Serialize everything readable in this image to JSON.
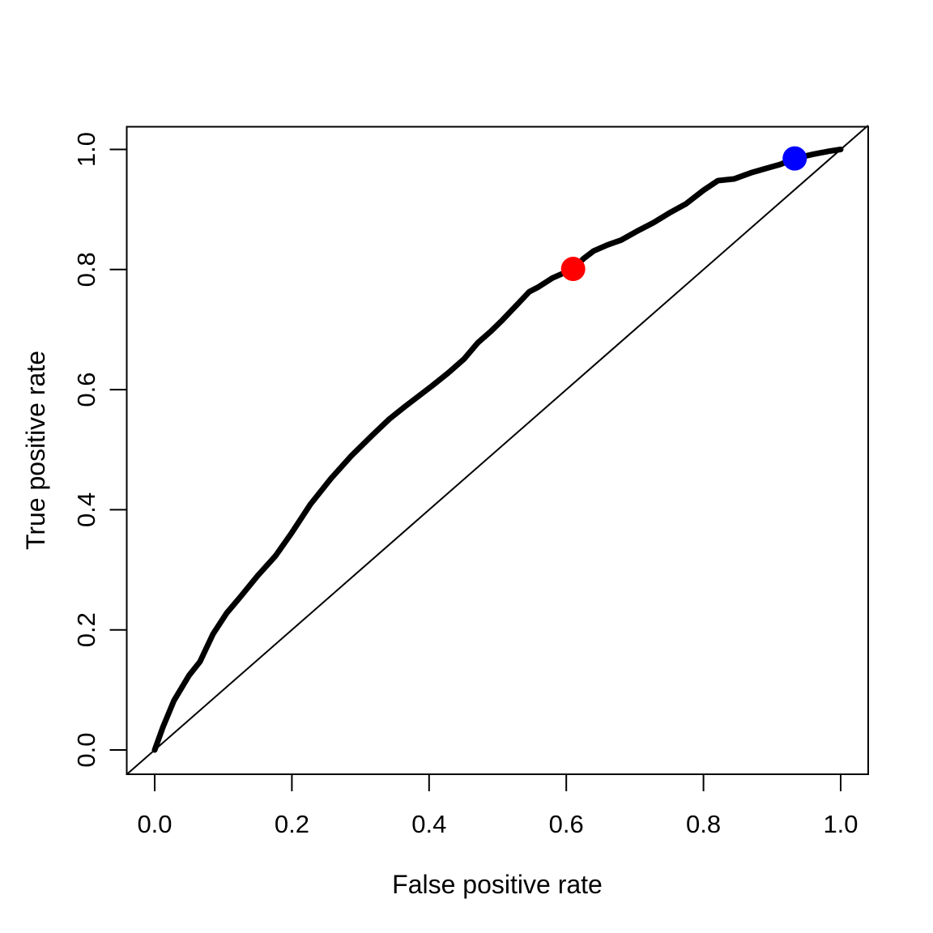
{
  "figure": {
    "background": "#FFFFFF",
    "foreground": "#000000"
  },
  "chart_data": {
    "type": "line",
    "title": "",
    "xlabel": "False positive rate",
    "ylabel": "True positive rate",
    "xlim": [
      0,
      1
    ],
    "ylim": [
      0,
      1
    ],
    "grid": false,
    "legend": "none",
    "x_ticks": [
      0.0,
      0.2,
      0.4,
      0.6,
      0.8,
      1.0
    ],
    "y_ticks": [
      0.0,
      0.2,
      0.4,
      0.6,
      0.8,
      1.0
    ],
    "x_tick_labels": [
      "0.0",
      "0.2",
      "0.4",
      "0.6",
      "0.8",
      "1.0"
    ],
    "y_tick_labels": [
      "0.0",
      "0.2",
      "0.4",
      "0.6",
      "0.8",
      "1.0"
    ],
    "series": [
      {
        "name": "ROC curve",
        "type": "line",
        "color": "#000000",
        "line_width": 7,
        "points": [
          [
            0,
            0
          ],
          [
            0.012,
            0.038
          ],
          [
            0.028,
            0.082
          ],
          [
            0.05,
            0.124
          ],
          [
            0.066,
            0.147
          ],
          [
            0.085,
            0.193
          ],
          [
            0.105,
            0.228
          ],
          [
            0.125,
            0.255
          ],
          [
            0.15,
            0.29
          ],
          [
            0.176,
            0.323
          ],
          [
            0.2,
            0.362
          ],
          [
            0.227,
            0.409
          ],
          [
            0.257,
            0.452
          ],
          [
            0.286,
            0.489
          ],
          [
            0.318,
            0.525
          ],
          [
            0.342,
            0.551
          ],
          [
            0.365,
            0.572
          ],
          [
            0.404,
            0.606
          ],
          [
            0.428,
            0.628
          ],
          [
            0.451,
            0.651
          ],
          [
            0.471,
            0.678
          ],
          [
            0.49,
            0.697
          ],
          [
            0.507,
            0.716
          ],
          [
            0.527,
            0.74
          ],
          [
            0.546,
            0.763
          ],
          [
            0.558,
            0.77
          ],
          [
            0.58,
            0.786
          ],
          [
            0.61,
            0.801
          ],
          [
            0.625,
            0.818
          ],
          [
            0.64,
            0.831
          ],
          [
            0.66,
            0.841
          ],
          [
            0.68,
            0.849
          ],
          [
            0.705,
            0.865
          ],
          [
            0.727,
            0.878
          ],
          [
            0.75,
            0.894
          ],
          [
            0.774,
            0.909
          ],
          [
            0.8,
            0.932
          ],
          [
            0.821,
            0.948
          ],
          [
            0.845,
            0.951
          ],
          [
            0.869,
            0.961
          ],
          [
            0.89,
            0.968
          ],
          [
            0.912,
            0.975
          ],
          [
            0.933,
            0.985
          ],
          [
            0.96,
            0.992
          ],
          [
            0.983,
            0.997
          ],
          [
            1,
            1
          ]
        ]
      },
      {
        "name": "chance diagonal",
        "type": "line",
        "color": "#000000",
        "line_width": 2,
        "points": [
          [
            -0.04,
            -0.04
          ],
          [
            1.04,
            1.04
          ]
        ],
        "note": "thin reference line y = x spanning the full plot box"
      }
    ],
    "markers": [
      {
        "name": "red threshold point",
        "x": 0.61,
        "y": 0.801,
        "color": "#FF0000",
        "radius": 15
      },
      {
        "name": "blue threshold point",
        "x": 0.933,
        "y": 0.985,
        "color": "#0000FF",
        "radius": 15
      }
    ]
  }
}
